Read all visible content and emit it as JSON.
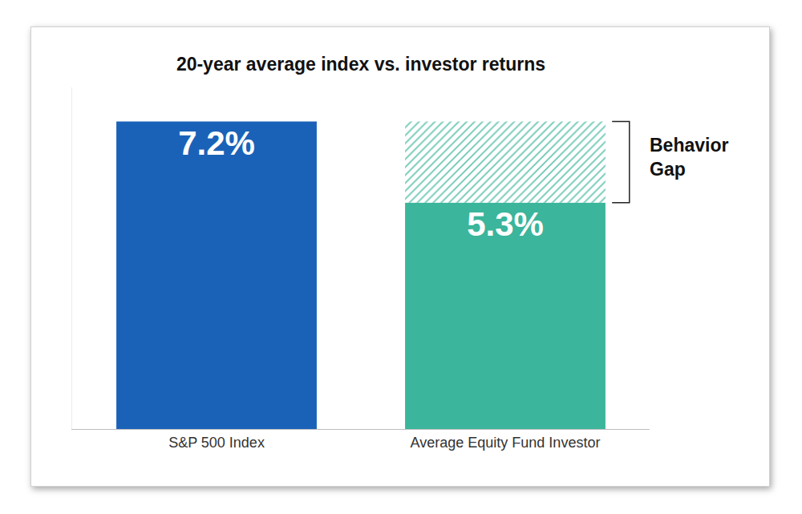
{
  "chart_data": {
    "type": "bar",
    "title": "20-year average index vs. investor returns",
    "categories": [
      "S&P 500 Index",
      "Average Equity Fund Investor"
    ],
    "values": [
      7.2,
      5.3
    ],
    "value_labels": [
      "7.2%",
      "5.3%"
    ],
    "colors": [
      "#1a62b8",
      "#3bb59b"
    ],
    "ylim": [
      0,
      8
    ],
    "yticks": [],
    "grid": false,
    "data_labels": true,
    "tick_labels": "x",
    "annotations": [
      "Behavior Gap"
    ]
  }
}
